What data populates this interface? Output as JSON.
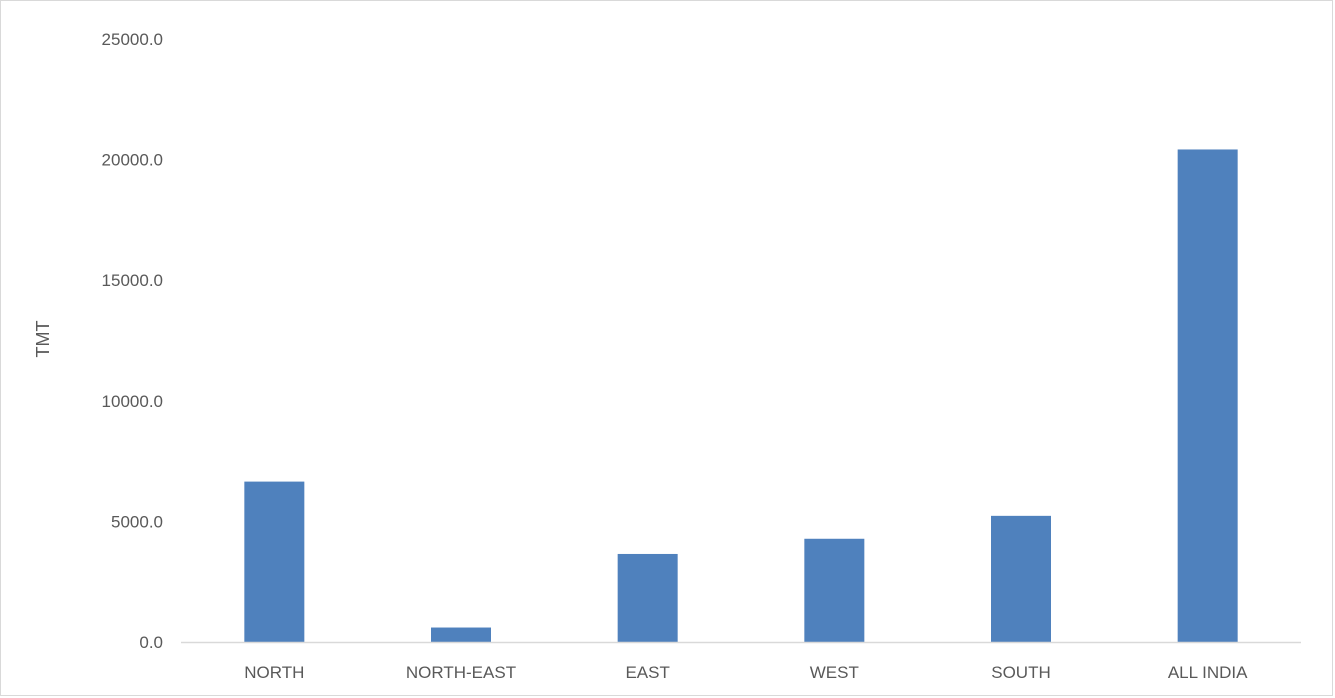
{
  "chart_data": {
    "type": "bar",
    "title": "",
    "xlabel": "",
    "ylabel": "TMT",
    "categories": [
      "NORTH",
      "NORTH-EAST",
      "EAST",
      "WEST",
      "SOUTH",
      "ALL INDIA"
    ],
    "values": [
      6650,
      600,
      3650,
      4280,
      5230,
      20420
    ],
    "ylim": [
      0,
      25000
    ],
    "yticks": [
      "0.0",
      "5000.0",
      "10000.0",
      "15000.0",
      "20000.0",
      "25000.0"
    ],
    "ytick_values": [
      0,
      5000,
      10000,
      15000,
      20000,
      25000
    ],
    "grid": false,
    "legend": "none",
    "bar_color": "#4f81bd",
    "axis_color": "#d9d9d9"
  }
}
